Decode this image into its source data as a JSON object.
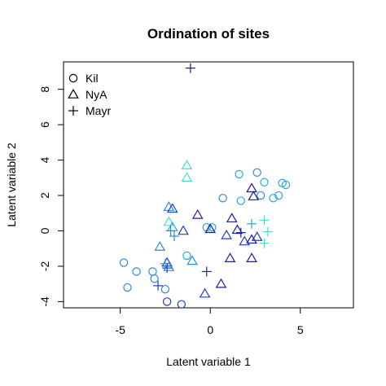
{
  "chart_data": {
    "type": "scatter",
    "title": "Ordination of sites",
    "xlabel": "Latent variable 1",
    "ylabel": "Latent variable 2",
    "xlim": [
      -8.15,
      7.95
    ],
    "ylim": [
      -4.35,
      9.55
    ],
    "xticks": [
      -5,
      0,
      5
    ],
    "yticks": [
      -4,
      -2,
      0,
      2,
      4,
      6,
      8
    ],
    "grid": false,
    "legend": {
      "position": "top-left",
      "entries": [
        {
          "label": "Kil",
          "marker": "circle"
        },
        {
          "label": "NyA",
          "marker": "triangle"
        },
        {
          "label": "Mayr",
          "marker": "plus"
        }
      ]
    },
    "palette": [
      "#40e0d0",
      "#22a9e0",
      "#2c8bd6",
      "#1f3fbf",
      "#1a1aa8",
      "#14147a"
    ],
    "series": [
      {
        "name": "Kil",
        "marker": "circle",
        "points": [
          [
            -4.8,
            -1.8,
            2
          ],
          [
            -4.6,
            -3.2,
            2
          ],
          [
            -4.1,
            -2.3,
            2
          ],
          [
            -3.2,
            -2.3,
            2
          ],
          [
            -3.1,
            -2.7,
            2
          ],
          [
            -2.5,
            -3.3,
            2
          ],
          [
            -2.4,
            -4.0,
            3
          ],
          [
            -1.6,
            -4.15,
            3
          ],
          [
            -1.3,
            -1.4,
            1
          ],
          [
            -0.2,
            0.2,
            1
          ],
          [
            0.1,
            0.2,
            1
          ],
          [
            0.7,
            1.85,
            2
          ],
          [
            1.6,
            3.2,
            1
          ],
          [
            1.7,
            1.7,
            1
          ],
          [
            2.6,
            3.3,
            2
          ],
          [
            2.8,
            2.0,
            2
          ],
          [
            3.0,
            2.75,
            1
          ],
          [
            3.5,
            1.85,
            1
          ],
          [
            3.8,
            2.0,
            1
          ],
          [
            4.0,
            2.7,
            1
          ],
          [
            4.2,
            2.6,
            1
          ]
        ]
      },
      {
        "name": "NyA",
        "marker": "triangle",
        "points": [
          [
            -1.3,
            3.7,
            0
          ],
          [
            -1.3,
            3.0,
            0
          ],
          [
            -2.3,
            1.35,
            2
          ],
          [
            -2.1,
            1.25,
            3
          ],
          [
            -2.3,
            0.5,
            0
          ],
          [
            -2.1,
            0.2,
            1
          ],
          [
            -1.5,
            0.0,
            3
          ],
          [
            -0.7,
            0.9,
            4
          ],
          [
            0.0,
            0.1,
            4
          ],
          [
            1.2,
            0.7,
            4
          ],
          [
            1.5,
            0.05,
            4
          ],
          [
            0.9,
            -0.25,
            3
          ],
          [
            1.9,
            -0.6,
            3
          ],
          [
            2.3,
            -0.5,
            4
          ],
          [
            2.3,
            2.4,
            4
          ],
          [
            2.4,
            1.95,
            4
          ],
          [
            2.6,
            -0.35,
            3
          ],
          [
            -2.8,
            -0.9,
            2
          ],
          [
            -2.4,
            -1.8,
            3
          ],
          [
            -2.3,
            -2.05,
            2
          ],
          [
            -1.0,
            -1.7,
            2
          ],
          [
            1.1,
            -1.55,
            4
          ],
          [
            2.3,
            -1.55,
            4
          ],
          [
            0.6,
            -3.0,
            4
          ],
          [
            -0.3,
            -3.55,
            3
          ]
        ]
      },
      {
        "name": "Mayr",
        "marker": "plus",
        "points": [
          [
            -1.1,
            9.2,
            4
          ],
          [
            -2.2,
            0.0,
            2
          ],
          [
            -2.0,
            -0.3,
            2
          ],
          [
            -2.5,
            -1.85,
            1
          ],
          [
            -2.4,
            -2.1,
            3
          ],
          [
            -2.9,
            -3.1,
            3
          ],
          [
            -0.2,
            -2.3,
            4
          ],
          [
            1.7,
            -0.1,
            4
          ],
          [
            2.3,
            0.4,
            1
          ],
          [
            3.0,
            0.6,
            0
          ],
          [
            3.2,
            -0.05,
            0
          ],
          [
            3.0,
            -0.7,
            0
          ]
        ]
      }
    ]
  }
}
